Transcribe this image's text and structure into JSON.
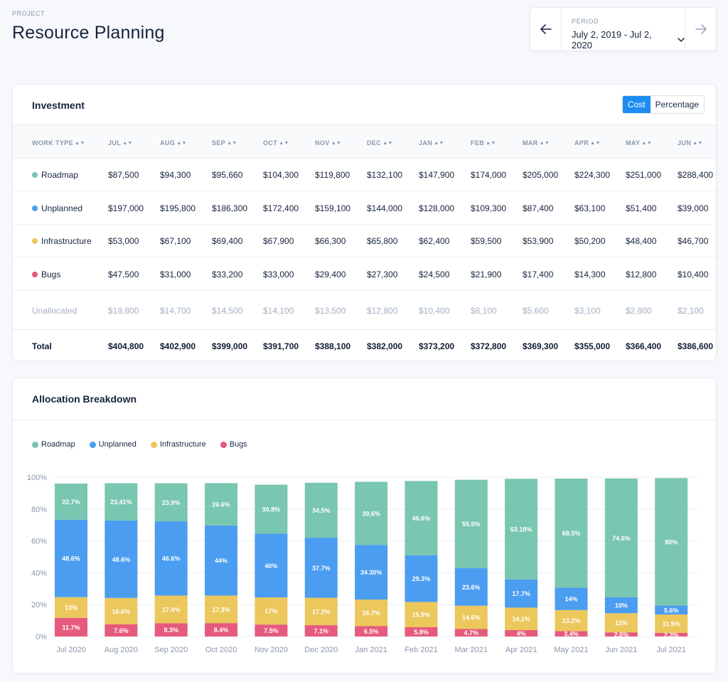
{
  "header": {
    "project_label": "PROJECT",
    "title": "Resource Planning"
  },
  "period": {
    "label": "PERIOD",
    "value": "July 2, 2019 - Jul 2, 2020",
    "prev_icon": "arrow-left-icon",
    "next_icon": "arrow-right-icon",
    "dropdown_icon": "chevron-down-icon"
  },
  "colors": {
    "roadmap": "#79c6b1",
    "unplanned": "#4a9df0",
    "infrastructure": "#ecc75c",
    "bugs": "#e55a7d",
    "accent": "#1e8cf0"
  },
  "investment": {
    "title": "Investment",
    "toggle": {
      "cost": "Cost",
      "percentage": "Percentage",
      "active": "cost"
    },
    "columns": [
      "WORK TYPE",
      "JUL",
      "AUG",
      "SEP",
      "OCT",
      "NOV",
      "DEC",
      "JAN",
      "FEB",
      "MAR",
      "APR",
      "MAY",
      "JUN"
    ],
    "rows": [
      {
        "label": "Roadmap",
        "color": "#79c6b1",
        "values": [
          "$87,500",
          "$94,300",
          "$95,660",
          "$104,300",
          "$119,800",
          "$132,100",
          "$147,900",
          "$174,000",
          "$205,000",
          "$224,300",
          "$251,000",
          "$288,400"
        ]
      },
      {
        "label": "Unplanned",
        "color": "#4a9df0",
        "values": [
          "$197,000",
          "$195,800",
          "$186,300",
          "$172,400",
          "$159,100",
          "$144,000",
          "$128,000",
          "$109,300",
          "$87,400",
          "$63,100",
          "$51,400",
          "$39,000"
        ]
      },
      {
        "label": "Infrastructure",
        "color": "#ecc75c",
        "values": [
          "$53,000",
          "$67,100",
          "$69,400",
          "$67,900",
          "$66,300",
          "$65,800",
          "$62,400",
          "$59,500",
          "$53,900",
          "$50,200",
          "$48,400",
          "$46,700"
        ]
      },
      {
        "label": "Bugs",
        "color": "#e55a7d",
        "values": [
          "$47,500",
          "$31,000",
          "$33,200",
          "$33,000",
          "$29,400",
          "$27,300",
          "$24,500",
          "$21,900",
          "$17,400",
          "$14,300",
          "$12,800",
          "$10,400"
        ]
      }
    ],
    "unallocated": {
      "label": "Unallocated",
      "values": [
        "$19,800",
        "$14,700",
        "$14,500",
        "$14,100",
        "$13,500",
        "$12,800",
        "$10,400",
        "$8,100",
        "$5,600",
        "$3,100",
        "$2,800",
        "$2,100"
      ]
    },
    "total": {
      "label": "Total",
      "values": [
        "$404,800",
        "$402,900",
        "$399,000",
        "$391,700",
        "$388,100",
        "$382,000",
        "$373,200",
        "$372,800",
        "$369,300",
        "$355,000",
        "$366,400",
        "$386,600"
      ]
    }
  },
  "allocation": {
    "title": "Allocation Breakdown",
    "legend": [
      {
        "label": "Roadmap",
        "color": "#79c6b1"
      },
      {
        "label": "Unplanned",
        "color": "#4a9df0"
      },
      {
        "label": "Infrastructure",
        "color": "#ecc75c"
      },
      {
        "label": "Bugs",
        "color": "#e55a7d"
      }
    ]
  },
  "chart_data": {
    "type": "bar",
    "stacked": true,
    "categories": [
      "Jul 2020",
      "Aug 2020",
      "Sep 2020",
      "Oct 2020",
      "Nov 2020",
      "Dec 2020",
      "Jan 2021",
      "Feb 2021",
      "Mar 2021",
      "Apr 2021",
      "May 2021",
      "Jun 2021",
      "Jul 2021"
    ],
    "y_ticks": [
      "0%",
      "20%",
      "40%",
      "60%",
      "80%",
      "100%"
    ],
    "ylim": [
      0,
      100
    ],
    "grid": true,
    "legend_position": "top-left",
    "series": [
      {
        "name": "Bugs",
        "color": "#e55a7d",
        "values": [
          11.7,
          7.6,
          8.3,
          8.4,
          7.5,
          7.1,
          6.5,
          5.8,
          4.7,
          4.0,
          3.4,
          2.6,
          2.3
        ],
        "labels": [
          "11.7%",
          "7.6%",
          "8.3%",
          "8.4%",
          "7.5%",
          "7.1%",
          "6.5%",
          "5.8%",
          "4.7%",
          "4%",
          "3.4%",
          "2.6%",
          "2.3%"
        ]
      },
      {
        "name": "Infrastructure",
        "color": "#ecc75c",
        "values": [
          13.0,
          16.6,
          17.4,
          17.3,
          17.0,
          17.2,
          16.7,
          15.9,
          14.6,
          14.1,
          13.2,
          12.0,
          11.5
        ],
        "labels": [
          "13%",
          "16.6%",
          "17.4%",
          "17.3%",
          "17%",
          "17.2%",
          "16.7%",
          "15.9%",
          "14.6%",
          "14.1%",
          "13.2%",
          "12%",
          "11.5%"
        ]
      },
      {
        "name": "Unplanned",
        "color": "#4a9df0",
        "values": [
          48.6,
          48.6,
          46.6,
          44.0,
          40.0,
          37.7,
          34.3,
          29.3,
          23.6,
          17.7,
          14.0,
          10.0,
          5.6
        ],
        "labels": [
          "48.6%",
          "48.6%",
          "46.6%",
          "44%",
          "40%",
          "37.7%",
          "34.30%",
          "29.3%",
          "23.6%",
          "17.7%",
          "14%",
          "10%",
          "5.6%"
        ]
      },
      {
        "name": "Roadmap",
        "color": "#79c6b1",
        "values": [
          22.7,
          23.41,
          23.9,
          26.6,
          30.8,
          34.5,
          39.6,
          46.6,
          55.5,
          63.18,
          68.5,
          74.6,
          80.0
        ],
        "labels": [
          "22.7%",
          "23,41%",
          "23.9%",
          "26.6%",
          "30.8%",
          "34.5%",
          "39.6%",
          "46.6%",
          "55.5%",
          "63.18%",
          "68.5%",
          "74.6%",
          "80%"
        ]
      }
    ]
  }
}
